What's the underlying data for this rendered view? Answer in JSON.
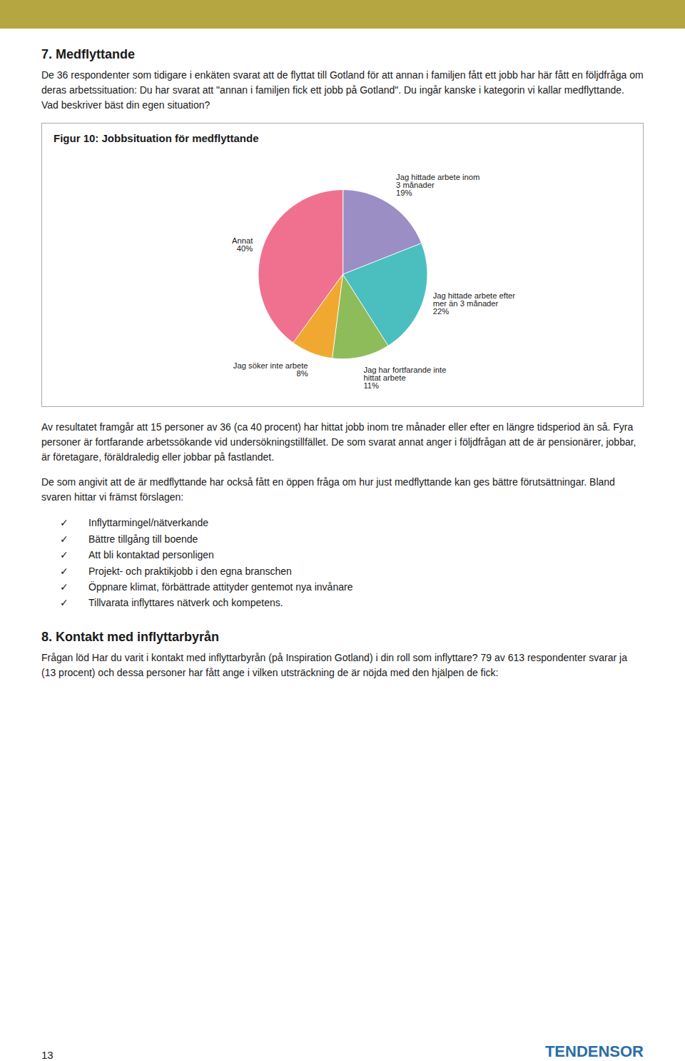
{
  "chart_data": {
    "type": "pie",
    "title": "Figur 10: Jobbsituation för medflyttande",
    "categories": [
      "Jag hittade arbete inom\n3 månader",
      "Jag hittade arbete efter\nmer än 3 månader",
      "Jag har fortfarande inte\nhittat arbete",
      "Jag söker inte arbete",
      "Annat"
    ],
    "values": [
      19,
      22,
      11,
      8,
      40
    ],
    "value_labels": [
      "19%",
      "22%",
      "11%",
      "8%",
      "40%"
    ],
    "data_labels": true,
    "colors": [
      "#9b8ec4",
      "#4bbfbf",
      "#8fbc5a",
      "#f0a830",
      "#f07090"
    ]
  },
  "page_text": {
    "section_title": "7. Medflyttande",
    "section_text": "De 36 respondenter som tidigare i enkäten svarat att de flyttat till Gotland för att annan i familjen fått ett jobb har här fått en följdfråga om deras arbetssituation: Du har svarat att \"annan i familjen fick ett jobb på Gotland\". Du ingår kanske i kategorin vi kallar medflyttande. Vad beskriver bäst din egen situation?",
    "result_text": "Av resultatet framgår att 15 personer av 36 (ca 40 procent) har hittat jobb inom tre månader eller efter en längre tidsperiod än så. Fyra personer är fortfarande arbetssökande vid undersökningstillfället. De som svarat annat anger i följdfrågan att de är pensionärer, jobbar, är företagare, föräldraledig eller jobbar på fastlandet.",
    "result_text2": "De som angivit att de är medflyttande har också fått en öppen fråga om hur just medflyttande kan ges bättre förutsättningar. Bland svaren hittar vi främst förslagen:",
    "bullet_mark": "✓",
    "bullet_items": [
      "Inflyttarmingel/nätverkande",
      "Bättre tillgång till boende",
      "Att bli kontaktad personligen",
      "Projekt- och praktikjobb i den egna branschen",
      "Öppnare klimat, förbättrade attityder gentemot nya invånare",
      "Tillvarata inflyttares nätverk och kompetens."
    ],
    "section2_title": "8. Kontakt med inflyttarbyrån",
    "section2_text": "Frågan löd Har du varit i kontakt med inflyttarbyrån (på Inspiration Gotland) i din roll som inflyttare? 79 av 613 respondenter svarar ja (13 procent) och dessa personer har fått ange i vilken utsträckning de är nöjda med den hjälpen de fick:",
    "page_number": "13",
    "logo": "TENDENSOR"
  }
}
